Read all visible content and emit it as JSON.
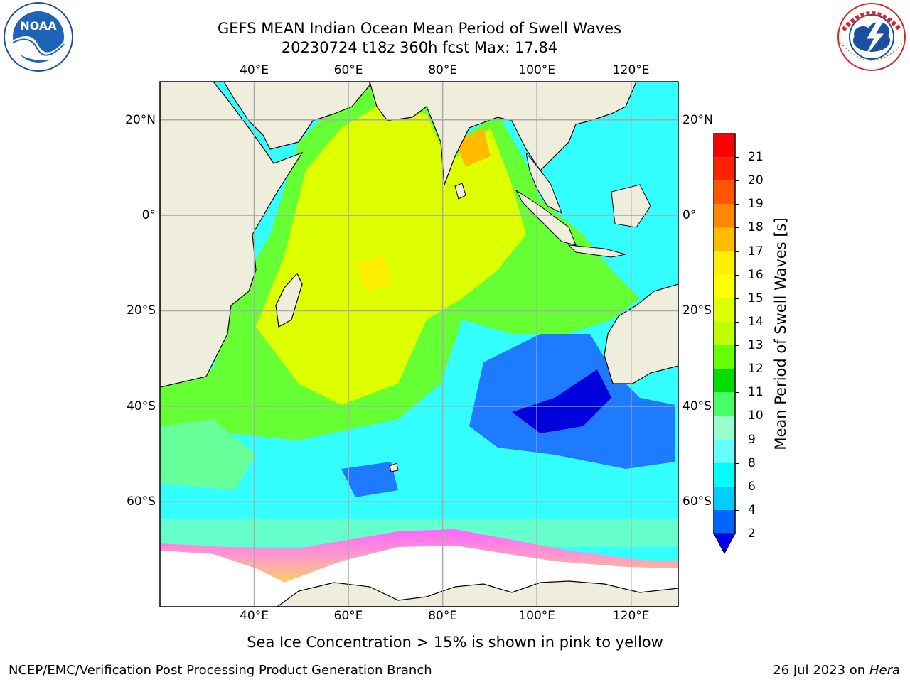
{
  "title": {
    "line1": "GEFS MEAN Indian Ocean Mean Period of Swell Waves",
    "line2": "20230724 t18z 360h fcst   Max: 17.84"
  },
  "logos": {
    "left": {
      "name": "noaa-logo",
      "text": "NOAA",
      "ring_text": "NATIONAL OCEANIC AND ATMOSPHERIC ADMINISTRATION · U.S. DEPARTMENT OF COMMERCE"
    },
    "right": {
      "name": "nws-logo",
      "ring_text": "NATIONAL WEATHER SERVICE"
    }
  },
  "map": {
    "lon_labels": [
      "40°E",
      "60°E",
      "80°E",
      "100°E",
      "120°E"
    ],
    "lat_labels": [
      "20°N",
      "0°",
      "20°S",
      "40°S",
      "60°S"
    ],
    "lon_ticks": [
      40,
      60,
      80,
      100,
      120
    ],
    "lat_ticks": [
      20,
      0,
      -20,
      -40,
      -60
    ],
    "extent": {
      "lon": [
        20,
        130
      ],
      "lat": [
        -82,
        28
      ]
    }
  },
  "colorbar": {
    "label": "Mean Period of Swell Waves [s]",
    "ticks": [
      "2",
      "4",
      "6",
      "8",
      "9",
      "10",
      "11",
      "12",
      "13",
      "14",
      "15",
      "16",
      "17",
      "18",
      "19",
      "20",
      "21"
    ],
    "colors": [
      "#0066ff",
      "#00ccff",
      "#00ffff",
      "#66ffff",
      "#99ffcc",
      "#44ff66",
      "#00dd00",
      "#66ff00",
      "#bbff00",
      "#ddff00",
      "#ffff00",
      "#ffee00",
      "#ffbb00",
      "#ff8800",
      "#ff5500",
      "#ff2200",
      "#ff0000"
    ],
    "under_color": "#0000ee"
  },
  "note": "Sea Ice Concentration > 15% is shown in pink to yellow",
  "footer": {
    "left": "NCEP/EMC/Verification Post Processing Product Generation Branch",
    "right_date": "26 Jul 2023 on ",
    "right_machine": "Hera"
  }
}
